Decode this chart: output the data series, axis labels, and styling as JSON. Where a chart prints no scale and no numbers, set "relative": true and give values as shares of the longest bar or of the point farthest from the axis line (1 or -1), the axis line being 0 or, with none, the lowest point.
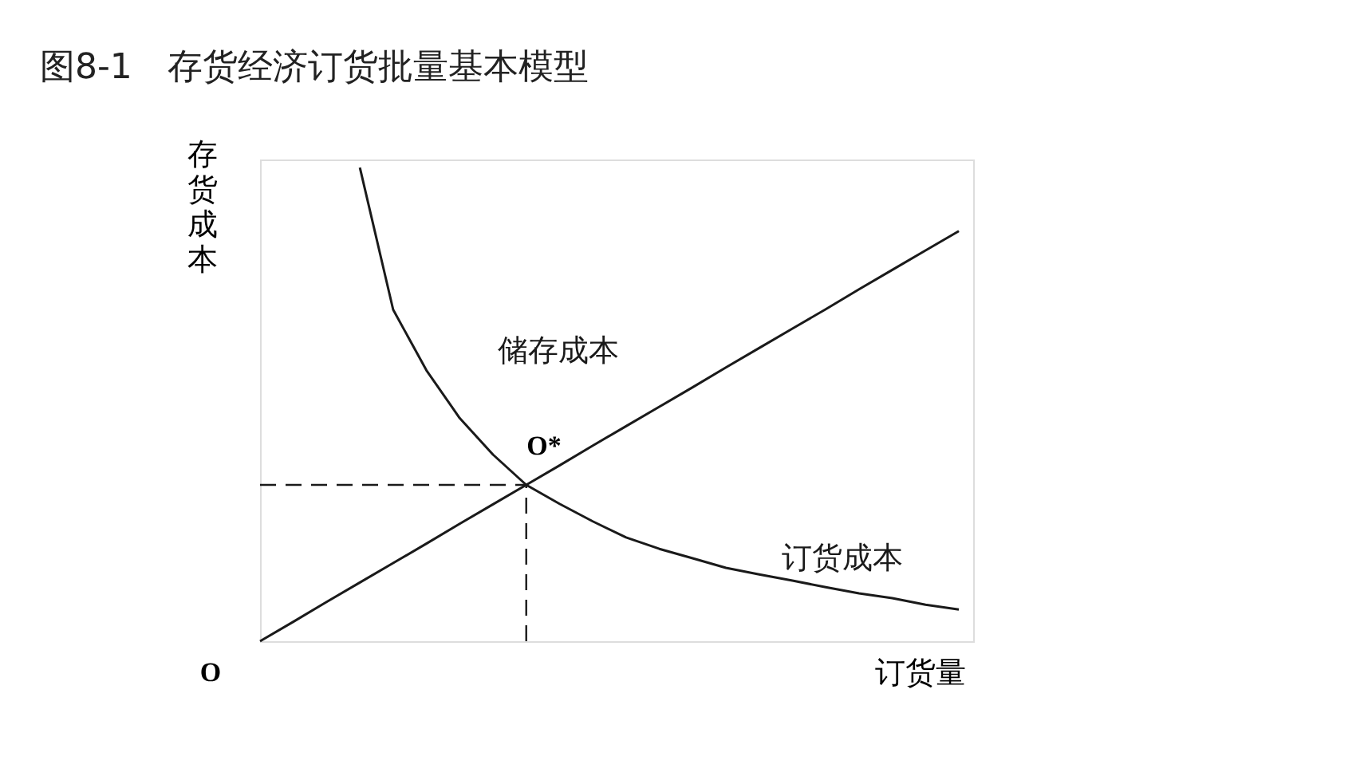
{
  "chart_data": {
    "type": "line",
    "title": "图8-1　存货经济订货批量基本模型",
    "xlabel": "订货量",
    "ylabel": "存货成本",
    "relative": true,
    "tick_labels": false,
    "grid": false,
    "marker": "none",
    "line_style": "solid",
    "categories": [
      null,
      null,
      null,
      null,
      null,
      null,
      null,
      null,
      null,
      null,
      null,
      null,
      null,
      null,
      null,
      null,
      null,
      null,
      null,
      null,
      null,
      null
    ],
    "series": [
      {
        "name": "储存成本",
        "color": "#1a1a1a",
        "values": [
          0,
          0.041,
          0.083,
          0.124,
          0.165,
          0.206,
          0.248,
          0.289,
          0.33,
          0.371,
          0.413,
          0.454,
          0.495,
          0.536,
          0.578,
          0.619,
          0.66,
          0.701,
          0.743,
          0.784,
          0.825,
          0.866
        ]
      },
      {
        "name": "订货成本",
        "color": "#1a1a1a",
        "values": [
          null,
          null,
          null,
          1.0,
          0.7,
          0.572,
          0.471,
          0.394,
          0.33,
          0.29,
          0.253,
          0.219,
          0.195,
          0.175,
          0.155,
          0.141,
          0.128,
          0.114,
          0.101,
          0.091,
          0.077,
          0.067
        ]
      }
    ],
    "ref_lines": [
      {
        "axis": "y",
        "value": 0.33,
        "line_style": "dashed",
        "color": "#1a1a1a"
      }
    ],
    "annotations": [
      "O*",
      "O"
    ]
  }
}
